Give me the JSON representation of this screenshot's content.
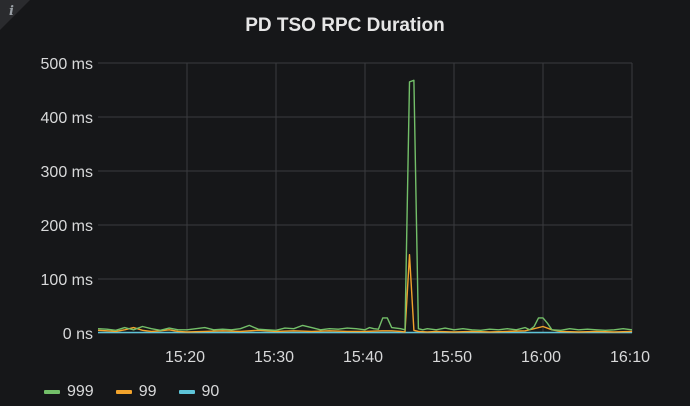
{
  "panel": {
    "info_icon": "i"
  },
  "chart_data": {
    "type": "line",
    "title": "PD TSO RPC Duration",
    "xlabel": "",
    "ylabel": "",
    "x_ticks": [
      "15:20",
      "15:30",
      "15:40",
      "15:50",
      "16:00",
      "16:10"
    ],
    "x_tick_minutes": [
      20,
      30,
      40,
      50,
      60,
      70
    ],
    "xlim": [
      10,
      70
    ],
    "y_ticks": [
      "0 ns",
      "100 ms",
      "200 ms",
      "300 ms",
      "400 ms",
      "500 ms"
    ],
    "y_tick_values": [
      0,
      100,
      200,
      300,
      400,
      500
    ],
    "ylim": [
      0,
      500
    ],
    "y_unit": "ms",
    "grid": true,
    "legend_position": "bottom-left",
    "series": [
      {
        "name": "999",
        "color": "#73bf69",
        "x": [
          10,
          11,
          12,
          13,
          14,
          15,
          16,
          17,
          18,
          19,
          20,
          21,
          22,
          23,
          24,
          25,
          26,
          27,
          28,
          29,
          30,
          31,
          32,
          33,
          34,
          35,
          36,
          37,
          38,
          39,
          40,
          40.5,
          41,
          41.5,
          42,
          42.5,
          43,
          44,
          44.5,
          45,
          45.5,
          46,
          46.5,
          47,
          48,
          49,
          50,
          51,
          52,
          53,
          54,
          55,
          56,
          57,
          58,
          58.5,
          59,
          59.5,
          60,
          60.5,
          61,
          62,
          63,
          64,
          65,
          66,
          67,
          68,
          69,
          70
        ],
        "y": [
          8,
          7,
          5,
          10,
          6,
          12,
          8,
          5,
          9,
          6,
          6,
          8,
          10,
          6,
          7,
          6,
          8,
          14,
          7,
          6,
          5,
          9,
          8,
          14,
          10,
          6,
          8,
          7,
          9,
          8,
          6,
          10,
          8,
          7,
          28,
          28,
          10,
          8,
          6,
          465,
          468,
          8,
          6,
          8,
          6,
          9,
          6,
          8,
          6,
          5,
          7,
          6,
          8,
          6,
          10,
          6,
          12,
          28,
          28,
          18,
          6,
          5,
          8,
          6,
          7,
          6,
          5,
          6,
          8,
          6
        ]
      },
      {
        "name": "99",
        "color": "#f2a32c",
        "x": [
          10,
          11,
          12,
          13,
          14,
          15,
          16,
          17,
          18,
          19,
          20,
          22,
          24,
          26,
          28,
          30,
          32,
          34,
          36,
          38,
          40,
          42,
          43,
          44,
          44.5,
          45,
          45.5,
          46,
          47,
          48,
          50,
          52,
          54,
          56,
          58,
          59,
          60,
          61,
          62,
          64,
          66,
          68,
          70
        ],
        "y": [
          5,
          4,
          3,
          6,
          10,
          5,
          3,
          4,
          6,
          3,
          2,
          3,
          4,
          3,
          5,
          3,
          4,
          3,
          4,
          3,
          3,
          4,
          4,
          3,
          2,
          145,
          5,
          3,
          2,
          3,
          2,
          3,
          2,
          3,
          4,
          8,
          12,
          6,
          3,
          2,
          3,
          2,
          3
        ]
      },
      {
        "name": "90",
        "color": "#5ec4d8",
        "x": [
          10,
          20,
          30,
          40,
          45,
          50,
          60,
          70
        ],
        "y": [
          1,
          1,
          1,
          1,
          1,
          1,
          1,
          1
        ]
      }
    ]
  }
}
